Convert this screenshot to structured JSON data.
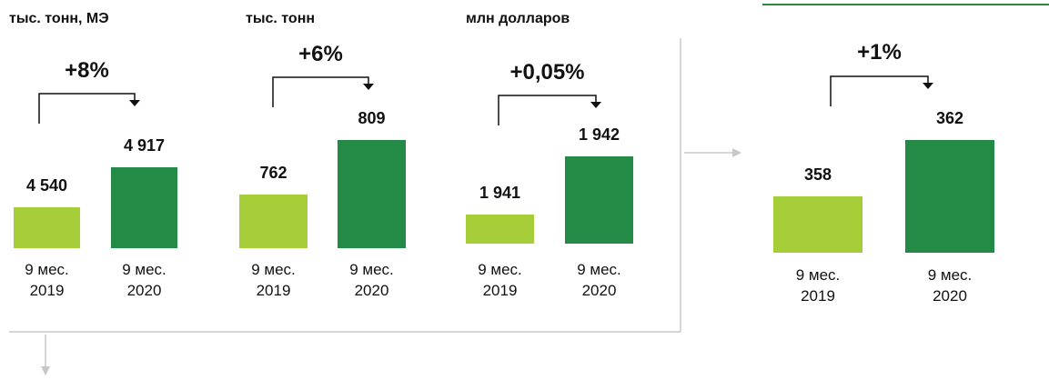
{
  "chart_data": [
    {
      "type": "bar",
      "title": "тыс. тонн, МЭ",
      "annotation": "+8%",
      "categories": [
        "9 мес. 2019",
        "9 мес. 2020"
      ],
      "values": [
        4540,
        4917
      ],
      "value_labels": [
        "4 540",
        "4 917"
      ],
      "colors": [
        "#a6ce39",
        "#238b45"
      ],
      "ylim": [
        4154,
        5440
      ]
    },
    {
      "type": "bar",
      "title": "тыс. тонн",
      "annotation": "+6%",
      "categories": [
        "9 мес. 2019",
        "9 мес. 2020"
      ],
      "values": [
        762,
        809
      ],
      "colors": [
        "#a6ce39",
        "#238b45"
      ],
      "ylim": [
        716,
        833
      ]
    },
    {
      "type": "bar",
      "title": "млн долларов",
      "annotation": "+0,05%",
      "categories": [
        "9 мес. 2019",
        "9 мес. 2020"
      ],
      "values": [
        1941,
        1942
      ],
      "value_labels": [
        "1 941",
        "1 942"
      ],
      "colors": [
        "#a6ce39",
        "#238b45"
      ],
      "ylim": [
        1940.5,
        1942.85
      ]
    },
    {
      "type": "bar",
      "annotation": "+1%",
      "categories": [
        "9 мес. 2019",
        "9 мес. 2020"
      ],
      "values": [
        358,
        362
      ],
      "colors": [
        "#a6ce39",
        "#238b45"
      ],
      "ylim": [
        354,
        363.7
      ]
    }
  ]
}
